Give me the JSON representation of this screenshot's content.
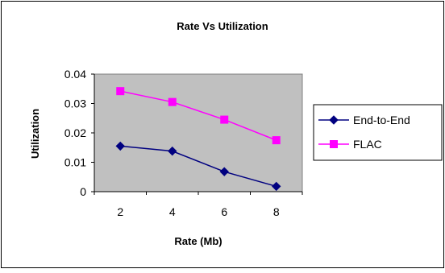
{
  "chart_data": {
    "type": "line",
    "title": "Rate Vs Utilization",
    "xlabel": "Rate (Mb)",
    "ylabel": "Utilization",
    "x": [
      2,
      4,
      6,
      8
    ],
    "categories": [
      "2",
      "4",
      "6",
      "8"
    ],
    "yticks": [
      "0",
      "0.01",
      "0.02",
      "0.03",
      "0.04"
    ],
    "ylim": [
      0,
      0.04
    ],
    "grid": false,
    "legend_position": "right",
    "plot_background": "#c0c0c0",
    "series": [
      {
        "name": "End-to-End",
        "values": [
          0.0155,
          0.0138,
          0.0068,
          0.0018
        ],
        "color": "#000080",
        "marker": "diamond"
      },
      {
        "name": "FLAC",
        "values": [
          0.0342,
          0.0305,
          0.0245,
          0.0175
        ],
        "color": "#ff00ff",
        "marker": "square"
      }
    ]
  }
}
